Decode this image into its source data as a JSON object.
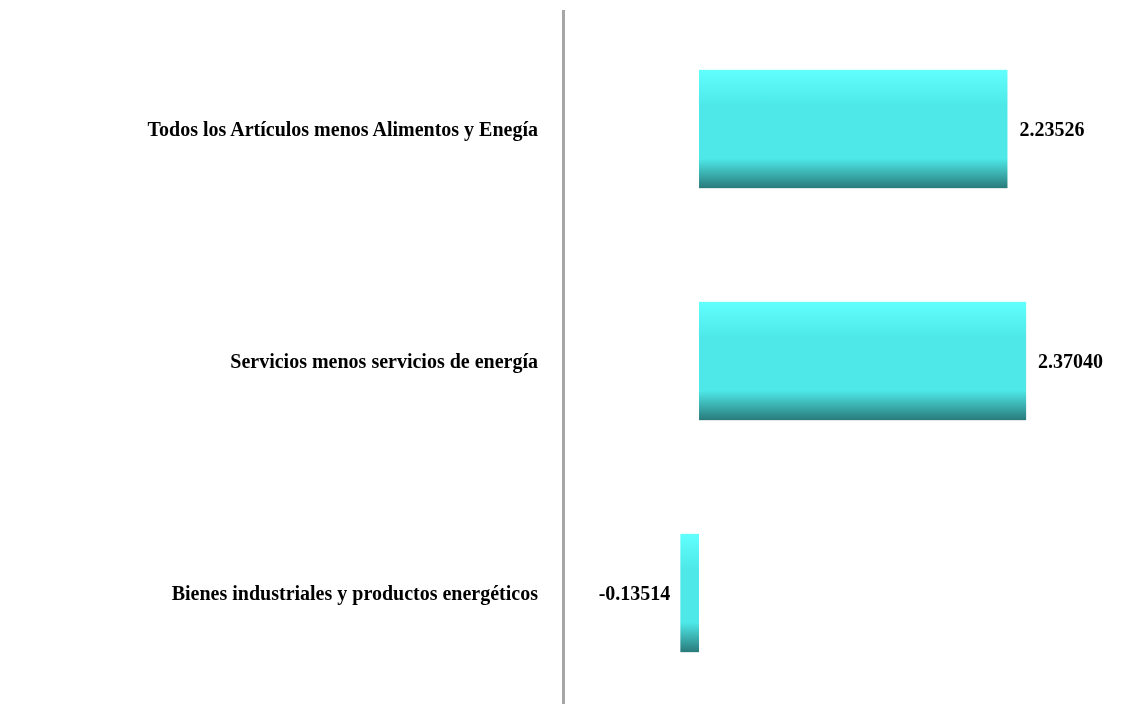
{
  "chart_data": {
    "type": "bar",
    "orientation": "horizontal",
    "data_labels": true,
    "categories": [
      "Todos los Artículos menos Alimentos y Enegía",
      "Servicios menos servicios de energía",
      "Bienes industriales y productos energéticos"
    ],
    "values": [
      2.23526,
      2.3704,
      -0.13514
    ],
    "value_labels": [
      "2.23526",
      "2.37040",
      "-0.13514"
    ],
    "color": "#4ee8e8"
  }
}
